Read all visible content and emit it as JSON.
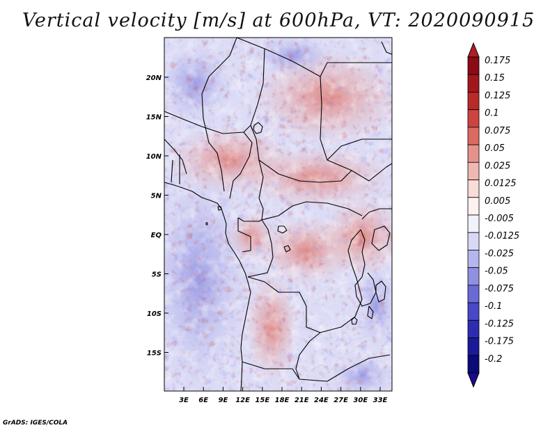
{
  "title": "Vertical velocity [m/s] at 600hPa, VT: 2020090915",
  "credit": "GrADS: IGES/COLA",
  "map": {
    "lat_labels": [
      "20N",
      "15N",
      "10N",
      "5N",
      "EQ",
      "5S",
      "10S",
      "15S"
    ],
    "lon_labels": [
      "3E",
      "6E",
      "9E",
      "12E",
      "15E",
      "18E",
      "21E",
      "24E",
      "27E",
      "30E",
      "33E"
    ]
  },
  "colorbar": {
    "labels": [
      "0.175",
      "0.15",
      "0.125",
      "0.1",
      "0.075",
      "0.05",
      "0.025",
      "0.0125",
      "0.005",
      "-0.005",
      "-0.0125",
      "-0.025",
      "-0.05",
      "-0.075",
      "-0.1",
      "-0.125",
      "-0.175",
      "-0.2"
    ],
    "colors": [
      "#8b0a14",
      "#a5161c",
      "#bb2a2a",
      "#cc4440",
      "#db6a60",
      "#e6928a",
      "#f0b8b2",
      "#f8dcd8",
      "#fdf2f0",
      "#f2f2fc",
      "#d8d8f6",
      "#b6b6ee",
      "#9090e2",
      "#6a6ad6",
      "#4848c8",
      "#2c2cb2",
      "#1a1a98",
      "#0a0a78"
    ],
    "top_triangle_color": "#b01e24",
    "bottom_triangle_color": "#1c0a8c"
  }
}
